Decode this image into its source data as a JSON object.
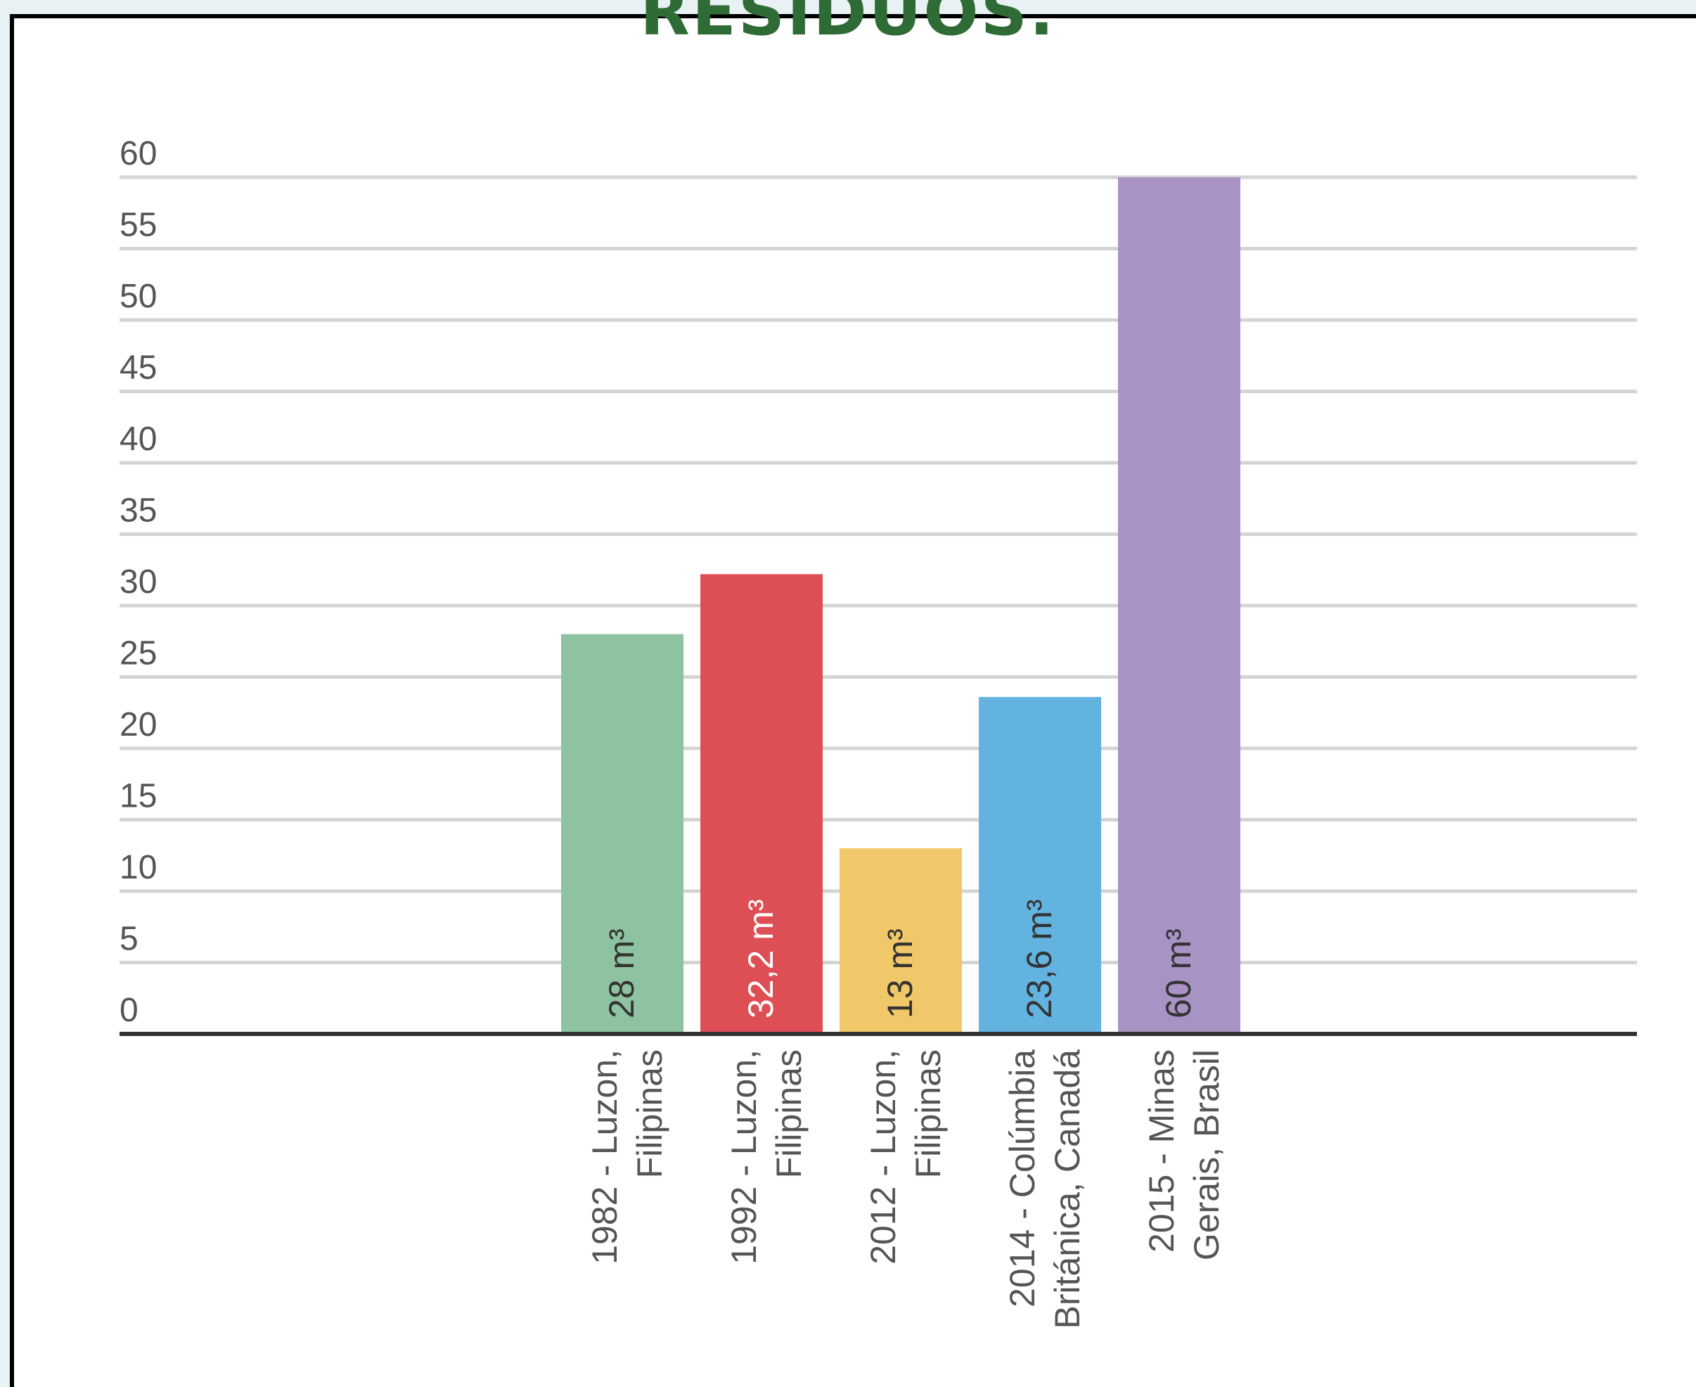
{
  "title": "RESÍDUOS.",
  "colors": {
    "grid": "#d4d4d4",
    "axis": "#333333",
    "ticks": "#555555",
    "title": "#2f6b35"
  },
  "chart_data": {
    "type": "bar",
    "title": "",
    "xlabel": "",
    "ylabel": "",
    "ylim": [
      0,
      60
    ],
    "yticks": [
      0,
      5,
      10,
      15,
      20,
      25,
      30,
      35,
      40,
      45,
      50,
      55,
      60
    ],
    "grid": true,
    "categories": [
      [
        "1982 - Luzon,",
        "Filipinas"
      ],
      [
        "1992 - Luzon,",
        "Filipinas"
      ],
      [
        "2012 - Luzon,",
        "Filipinas"
      ],
      [
        "2014 - Colúmbia",
        "Británica, Canadá"
      ],
      [
        "2015 - Minas",
        "Gerais, Brasil"
      ]
    ],
    "values": [
      28,
      32.2,
      13,
      23.6,
      60
    ],
    "value_labels": [
      "28 m³",
      "32,2 m³",
      "13 m³",
      "23,6 m³",
      "60 m³"
    ],
    "bar_colors": [
      "#8dc3a0",
      "#dd4f55",
      "#f0c869",
      "#62b3e0",
      "#a992c4"
    ],
    "value_label_colors": [
      "#333333",
      "#ffffff",
      "#333333",
      "#333333",
      "#333333"
    ]
  }
}
